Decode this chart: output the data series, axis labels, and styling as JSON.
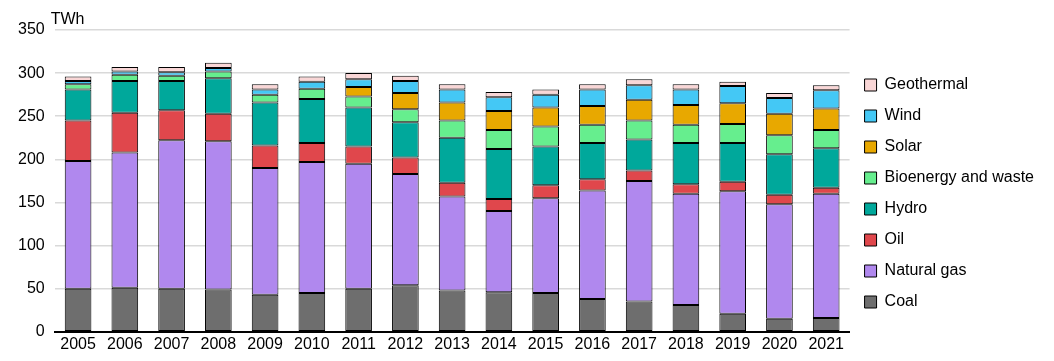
{
  "chart_data": {
    "type": "bar",
    "stacked": true,
    "ylabel": "TWh",
    "categories": [
      "2005",
      "2006",
      "2007",
      "2008",
      "2009",
      "2010",
      "2011",
      "2012",
      "2013",
      "2014",
      "2015",
      "2016",
      "2017",
      "2018",
      "2019",
      "2020",
      "2021"
    ],
    "series": [
      {
        "name": "Coal",
        "color": "#6e6e6e",
        "values": [
          50,
          51,
          50,
          49,
          43,
          45,
          50,
          54,
          48,
          46,
          45,
          38,
          35,
          31,
          21,
          15,
          16
        ]
      },
      {
        "name": "Natural gas",
        "color": "#b088ee",
        "values": [
          148,
          157,
          172,
          172,
          147,
          152,
          145,
          129,
          109,
          94,
          110,
          126,
          140,
          129,
          142,
          133,
          144
        ]
      },
      {
        "name": "Oil",
        "color": "#e0474c",
        "values": [
          47,
          46,
          35,
          32,
          26,
          22,
          20,
          19,
          16,
          14,
          15,
          13,
          12,
          11,
          11,
          11,
          7
        ]
      },
      {
        "name": "Hydro",
        "color": "#00a89b",
        "values": [
          36,
          37,
          34,
          41,
          50,
          51,
          45,
          41,
          52,
          58,
          45,
          42,
          36,
          48,
          45,
          47,
          46
        ]
      },
      {
        "name": "Bioenergy and waste",
        "color": "#66ee8e",
        "values": [
          6,
          7,
          6,
          8,
          9,
          12,
          13,
          15,
          20,
          22,
          23,
          21,
          22,
          21,
          22,
          22,
          21
        ]
      },
      {
        "name": "Solar",
        "color": "#e8a800",
        "values": [
          0,
          0,
          0,
          0,
          0,
          0,
          11,
          19,
          21,
          22,
          22,
          22,
          24,
          23,
          24,
          25,
          25
        ]
      },
      {
        "name": "Wind",
        "color": "#44c8f5",
        "values": [
          4,
          4,
          4,
          4,
          6,
          8,
          9,
          14,
          15,
          16,
          15,
          19,
          17,
          18,
          20,
          18,
          21
        ]
      },
      {
        "name": "Geothermal",
        "color": "#f9d6d6",
        "values": [
          5,
          5,
          6,
          6,
          6,
          6,
          7,
          6,
          6,
          6,
          6,
          6,
          7,
          6,
          5,
          6,
          6
        ]
      }
    ],
    "ylim": [
      0,
      350
    ],
    "yticks": [
      0,
      50,
      100,
      150,
      200,
      250,
      300,
      350
    ],
    "grid": "y",
    "legend": "right"
  }
}
